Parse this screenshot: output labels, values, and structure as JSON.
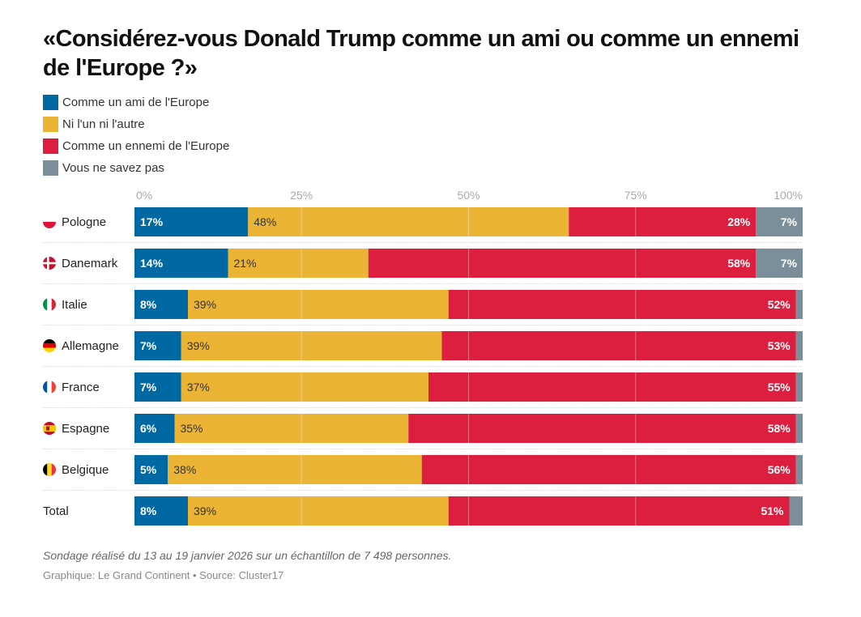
{
  "chart_data": {
    "type": "bar",
    "orientation": "horizontal",
    "stacked": true,
    "title": "«Considérez-vous Donald Trump comme un ami ou comme un ennemi de l'Europe ?»",
    "xlabel": "",
    "ylabel": "",
    "xlim": [
      0,
      100
    ],
    "x_ticks": [
      "0%",
      "25%",
      "50%",
      "75%",
      "100%"
    ],
    "x_tick_values": [
      0,
      25,
      50,
      75,
      100
    ],
    "grid": true,
    "legend_position": "top-left",
    "categories": [
      "Pologne",
      "Danemark",
      "Italie",
      "Allemagne",
      "France",
      "Espagne",
      "Belgique",
      "Total"
    ],
    "flags": [
      "poland-flag",
      "denmark-flag",
      "italy-flag",
      "germany-flag",
      "france-flag",
      "spain-flag",
      "belgium-flag",
      null
    ],
    "series": [
      {
        "name": "Comme un ami de l'Europe",
        "color": "#0069a3",
        "values": [
          17,
          14,
          8,
          7,
          7,
          6,
          5,
          8
        ],
        "labels": [
          "17%",
          "14%",
          "8%",
          "7%",
          "7%",
          "6%",
          "5%",
          "8%"
        ],
        "label_color": "#ffffff",
        "label_weight": "bold"
      },
      {
        "name": "Ni l'un ni l'autre",
        "color": "#ebb434",
        "values": [
          48,
          21,
          39,
          39,
          37,
          35,
          38,
          39
        ],
        "labels": [
          "48%",
          "21%",
          "39%",
          "39%",
          "37%",
          "35%",
          "38%",
          "39%"
        ],
        "label_color": "#333333",
        "label_weight": "normal"
      },
      {
        "name": "Comme un ennemi de l'Europe",
        "color": "#dc1f3e",
        "values": [
          28,
          58,
          52,
          53,
          55,
          58,
          56,
          51
        ],
        "labels": [
          "28%",
          "58%",
          "52%",
          "53%",
          "55%",
          "58%",
          "56%",
          "51%"
        ],
        "label_color": "#ffffff",
        "label_weight": "bold"
      },
      {
        "name": "Vous ne savez pas",
        "color": "#7a8f9a",
        "values": [
          7,
          7,
          1,
          1,
          1,
          1,
          1,
          2
        ],
        "labels": [
          "7%",
          "7%",
          "",
          "",
          "",
          "",
          "",
          ""
        ],
        "label_color": "#ffffff",
        "label_weight": "bold"
      }
    ]
  },
  "footer": {
    "note": "Sondage réalisé du 13 au 19 janvier 2026 sur un échantillon de 7 498 personnes.",
    "source": "Graphique: Le Grand Continent • Source: Cluster17"
  }
}
